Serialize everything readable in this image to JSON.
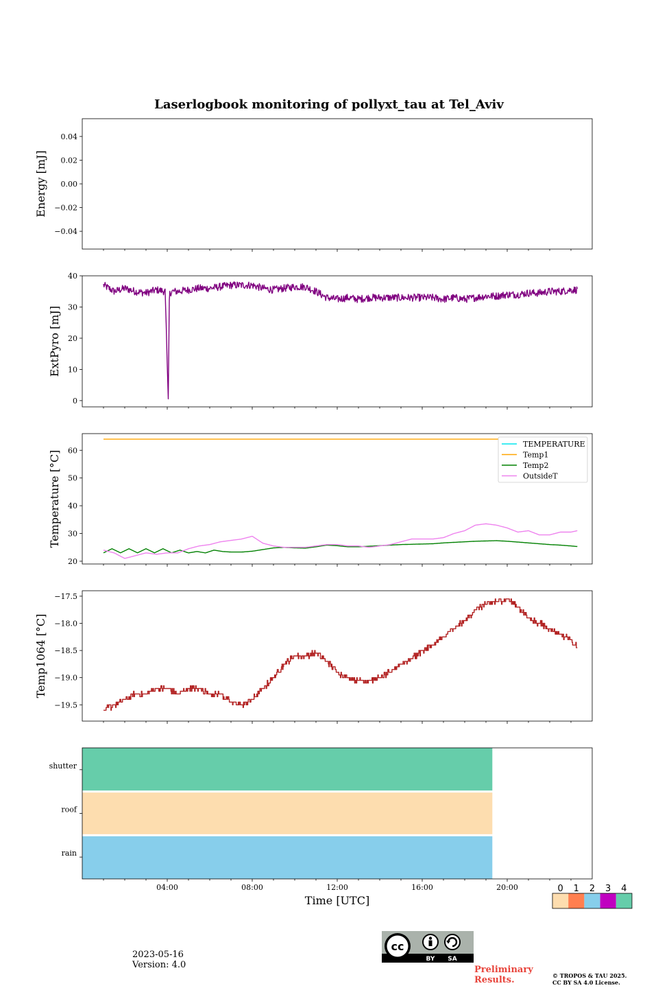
{
  "figure": {
    "title": "Laserlogbook monitoring of pollyxt_tau at Tel_Aviv"
  },
  "chart_data": [
    {
      "id": "energy",
      "type": "line",
      "ylabel": "Energy [mJ]",
      "ylim": [
        -0.055,
        0.055
      ],
      "yticks": [
        -0.04,
        -0.02,
        0.0,
        0.02,
        0.04
      ],
      "ytick_labels": [
        "−0.04",
        "−0.02",
        "0.00",
        "0.02",
        "0.04"
      ],
      "series": []
    },
    {
      "id": "extpyro",
      "type": "line",
      "ylabel": "ExtPyro [mJ]",
      "ylim": [
        -2,
        40
      ],
      "yticks": [
        0,
        10,
        20,
        30,
        40
      ],
      "ytick_labels": [
        "0",
        "10",
        "20",
        "30",
        "40"
      ],
      "series": [
        {
          "color": "#800080",
          "x_hours": [
            1.0,
            1.5,
            2.0,
            2.5,
            3.0,
            3.5,
            3.9,
            4.05,
            4.1,
            4.2,
            4.5,
            5.0,
            5.5,
            6.0,
            6.5,
            7.0,
            7.5,
            8.0,
            8.5,
            9.0,
            9.5,
            10.0,
            10.5,
            11.0,
            11.5,
            12.0,
            12.5,
            13.0,
            13.5,
            14.0,
            14.5,
            15.0,
            15.5,
            16.0,
            16.5,
            17.0,
            17.5,
            18.0,
            18.5,
            19.0,
            19.5,
            20.0,
            20.5,
            21.0,
            21.5,
            22.0,
            22.5,
            23.0,
            23.3
          ],
          "values": [
            37,
            35,
            36,
            35,
            34.5,
            35.5,
            35,
            0,
            34,
            35,
            35,
            35.5,
            36,
            36,
            36.5,
            37,
            37,
            37,
            36,
            35.5,
            36,
            36.5,
            36.5,
            35,
            33,
            32.5,
            33,
            32.5,
            33,
            33,
            33,
            33,
            33,
            33,
            33,
            32.5,
            33,
            32.5,
            33,
            33.5,
            33.5,
            34,
            34,
            34.5,
            34.5,
            35,
            35,
            35.5,
            35.5
          ],
          "noise": 1.2
        }
      ]
    },
    {
      "id": "temperature",
      "type": "line",
      "ylabel": "Temperature [°C]",
      "ylim": [
        19,
        66
      ],
      "yticks": [
        20,
        30,
        40,
        50,
        60
      ],
      "ytick_labels": [
        "20",
        "30",
        "40",
        "50",
        "60"
      ],
      "legend": {
        "placement": "top-right"
      },
      "series": [
        {
          "name": "TEMPERATURE",
          "color": "#00e5ee",
          "x_hours": [],
          "values": []
        },
        {
          "name": "Temp1",
          "color": "#ffa500",
          "x_hours": [
            1.0,
            23.3
          ],
          "values": [
            64,
            64
          ]
        },
        {
          "name": "Temp2",
          "color": "#008000",
          "x_hours": [
            1.0,
            1.4,
            1.8,
            2.2,
            2.6,
            3.0,
            3.4,
            3.8,
            4.2,
            4.6,
            5.0,
            5.4,
            5.8,
            6.2,
            6.6,
            7.0,
            7.5,
            8.0,
            8.5,
            9.0,
            9.5,
            10.0,
            10.5,
            11.0,
            11.5,
            12.0,
            12.5,
            13.0,
            13.5,
            14.0,
            14.5,
            15.0,
            15.5,
            16.0,
            16.5,
            17.0,
            17.5,
            18.0,
            18.5,
            19.0,
            19.5,
            20.0,
            20.5,
            21.0,
            21.5,
            22.0,
            22.5,
            23.0,
            23.3
          ],
          "values": [
            23,
            24.5,
            23,
            24.5,
            23,
            24.5,
            23,
            24.5,
            23,
            24,
            23,
            23.5,
            23,
            24,
            23.5,
            23.3,
            23.3,
            23.6,
            24.2,
            24.8,
            25,
            24.8,
            24.7,
            25.2,
            25.8,
            25.6,
            25.2,
            25.2,
            25.4,
            25.6,
            25.8,
            26.0,
            26.1,
            26.2,
            26.3,
            26.6,
            26.8,
            27.0,
            27.2,
            27.3,
            27.4,
            27.2,
            26.9,
            26.6,
            26.3,
            26.0,
            25.8,
            25.5,
            25.3
          ]
        },
        {
          "name": "OutsideT",
          "color": "#ee82ee",
          "x_hours": [
            1.0,
            1.5,
            2.0,
            2.5,
            3.0,
            3.5,
            4.0,
            4.5,
            5.0,
            5.5,
            6.0,
            6.5,
            7.0,
            7.5,
            8.0,
            8.5,
            9.0,
            9.5,
            10.0,
            10.5,
            11.0,
            11.5,
            12.0,
            12.5,
            13.0,
            13.5,
            14.0,
            14.5,
            15.0,
            15.5,
            16.0,
            16.5,
            17.0,
            17.5,
            18.0,
            18.5,
            19.0,
            19.5,
            20.0,
            20.5,
            21.0,
            21.5,
            22.0,
            22.5,
            23.0,
            23.3
          ],
          "values": [
            24,
            23,
            21,
            22,
            23,
            22.5,
            23,
            23,
            24.5,
            25.5,
            26,
            27,
            27.5,
            28,
            29,
            26.5,
            25.5,
            25,
            25,
            25,
            25.5,
            26,
            26,
            25.5,
            25.5,
            25,
            25.5,
            26,
            27,
            28,
            28,
            28,
            28.5,
            30,
            31,
            33,
            33.5,
            33,
            32,
            30.5,
            31,
            29.5,
            29.5,
            30.5,
            30.5,
            31
          ]
        }
      ]
    },
    {
      "id": "temp1064",
      "type": "line",
      "ylabel": "Temp1064 [°C]",
      "ylim": [
        -19.8,
        -17.4
      ],
      "yticks": [
        -19.5,
        -19.0,
        -18.5,
        -18.0,
        -17.5
      ],
      "ytick_labels": [
        "−19.5",
        "−19.0",
        "−18.5",
        "−18.0",
        "−17.5"
      ],
      "series": [
        {
          "color": "#b22222",
          "x_hours": [
            1.0,
            1.5,
            2.0,
            2.5,
            3.0,
            3.5,
            4.0,
            4.5,
            5.0,
            5.5,
            6.0,
            6.5,
            7.0,
            7.5,
            8.0,
            8.5,
            9.0,
            9.5,
            10.0,
            10.5,
            11.0,
            11.5,
            12.0,
            12.5,
            13.0,
            13.5,
            14.0,
            14.5,
            15.0,
            15.5,
            16.0,
            16.5,
            17.0,
            17.5,
            18.0,
            18.5,
            19.0,
            19.5,
            20.0,
            20.5,
            21.0,
            21.5,
            22.0,
            22.5,
            23.0,
            23.3
          ],
          "values": [
            -19.6,
            -19.5,
            -19.4,
            -19.3,
            -19.3,
            -19.2,
            -19.2,
            -19.3,
            -19.2,
            -19.2,
            -19.3,
            -19.3,
            -19.45,
            -19.5,
            -19.4,
            -19.2,
            -19.0,
            -18.75,
            -18.6,
            -18.6,
            -18.55,
            -18.7,
            -18.9,
            -19.0,
            -19.05,
            -19.05,
            -19.0,
            -18.9,
            -18.75,
            -18.65,
            -18.5,
            -18.4,
            -18.25,
            -18.1,
            -17.95,
            -17.75,
            -17.65,
            -17.6,
            -17.55,
            -17.7,
            -17.9,
            -18.0,
            -18.1,
            -18.2,
            -18.3,
            -18.45
          ],
          "noise": 0.05
        }
      ]
    },
    {
      "id": "status",
      "type": "heatmap",
      "rows": [
        "shutter",
        "roof",
        "rain"
      ],
      "x_range_hours": [
        0,
        19.3
      ],
      "row_values": [
        4,
        0,
        2
      ],
      "colorbar": {
        "labels": [
          "0",
          "1",
          "2",
          "3",
          "4"
        ],
        "colors": [
          "#fdddaf",
          "#ff7f50",
          "#87ceeb",
          "#c000c0",
          "#66cdaa"
        ]
      }
    }
  ],
  "xaxis": {
    "label": "Time [UTC]",
    "ticks_hours": [
      4,
      8,
      12,
      16,
      20
    ],
    "tick_labels": [
      "04:00",
      "08:00",
      "12:00",
      "16:00",
      "20:00"
    ],
    "range_hours": [
      0,
      24
    ]
  },
  "footer": {
    "date": "2023-05-16",
    "version": "Version: 4.0",
    "preliminary_line1": "Preliminary",
    "preliminary_line2": "Results.",
    "copyright_line1": "© TROPOS & TAU 2025.",
    "copyright_line2": "CC BY SA 4.0 License.",
    "badge_left": "BY",
    "badge_right": "SA"
  }
}
